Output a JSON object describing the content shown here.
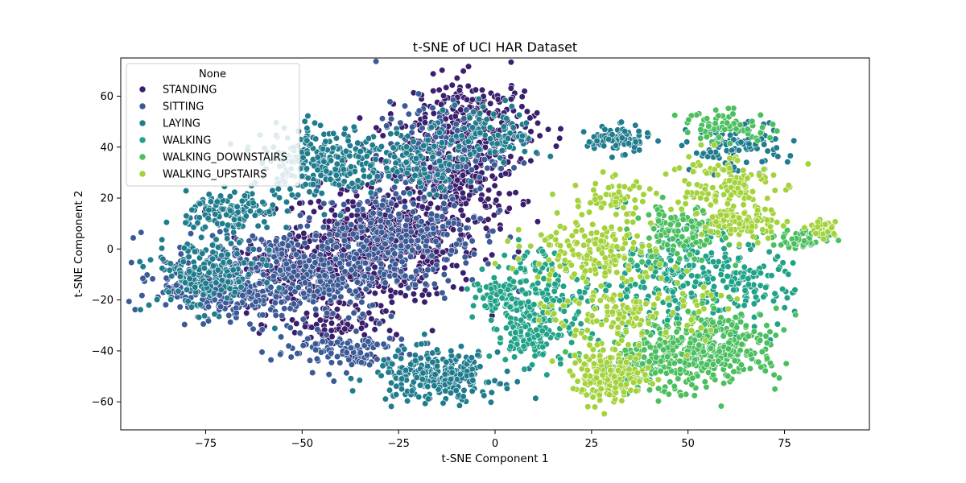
{
  "chart_data": {
    "type": "scatter",
    "title": "t-SNE of UCI HAR Dataset",
    "xlabel": "t-SNE Component 1",
    "ylabel": "t-SNE Component 2",
    "xlim": [
      -97,
      97
    ],
    "ylim": [
      -71,
      75
    ],
    "xticks": [
      -75,
      -50,
      -25,
      0,
      25,
      50,
      75
    ],
    "yticks": [
      -60,
      -40,
      -20,
      0,
      20,
      40,
      60
    ],
    "grid": false,
    "legend": {
      "title": "None",
      "position": "top-left"
    },
    "series": [
      {
        "name": "STANDING",
        "color": "#3b1f6e",
        "clusters": [
          {
            "cx": -30,
            "cy": 2,
            "sx": 13,
            "sy": 11,
            "n": 560
          },
          {
            "cx": -50,
            "cy": -10,
            "sx": 10,
            "sy": 8,
            "n": 180
          },
          {
            "cx": -12,
            "cy": 30,
            "sx": 9,
            "sy": 12,
            "n": 300
          },
          {
            "cx": -5,
            "cy": 50,
            "sx": 8,
            "sy": 9,
            "n": 200
          },
          {
            "cx": -40,
            "cy": -30,
            "sx": 8,
            "sy": 5,
            "n": 90
          }
        ]
      },
      {
        "name": "SITTING",
        "color": "#3b5a96",
        "clusters": [
          {
            "cx": -55,
            "cy": -10,
            "sx": 15,
            "sy": 9,
            "n": 430
          },
          {
            "cx": -25,
            "cy": 5,
            "sx": 11,
            "sy": 10,
            "n": 260
          },
          {
            "cx": -15,
            "cy": 38,
            "sx": 8,
            "sy": 10,
            "n": 150
          },
          {
            "cx": -40,
            "cy": -40,
            "sx": 9,
            "sy": 4,
            "n": 110
          },
          {
            "cx": -72,
            "cy": -16,
            "sx": 7,
            "sy": 6,
            "n": 160
          }
        ]
      },
      {
        "name": "LAYING",
        "color": "#207c8d",
        "clusters": [
          {
            "cx": -45,
            "cy": 35,
            "sx": 8,
            "sy": 7,
            "n": 260
          },
          {
            "cx": -68,
            "cy": 14,
            "sx": 6,
            "sy": 4,
            "n": 130
          },
          {
            "cx": -15,
            "cy": -50,
            "sx": 8,
            "sy": 5,
            "n": 260
          },
          {
            "cx": -75,
            "cy": -10,
            "sx": 7,
            "sy": 7,
            "n": 180
          },
          {
            "cx": 0,
            "cy": 45,
            "sx": 6,
            "sy": 6,
            "n": 100
          },
          {
            "cx": 32,
            "cy": 43,
            "sx": 4,
            "sy": 2.5,
            "n": 90
          },
          {
            "cx": 62,
            "cy": 40,
            "sx": 6,
            "sy": 5,
            "n": 110
          },
          {
            "cx": -20,
            "cy": 35,
            "sx": 6,
            "sy": 6,
            "n": 100
          }
        ]
      },
      {
        "name": "WALKING",
        "color": "#1fa287",
        "clusters": [
          {
            "cx": 12,
            "cy": -20,
            "sx": 7,
            "sy": 10,
            "n": 230
          },
          {
            "cx": 45,
            "cy": -12,
            "sx": 9,
            "sy": 10,
            "n": 230
          },
          {
            "cx": 65,
            "cy": -15,
            "sx": 6,
            "sy": 8,
            "n": 110
          },
          {
            "cx": 0,
            "cy": -18,
            "sx": 3,
            "sy": 3,
            "n": 40
          },
          {
            "cx": 8,
            "cy": -35,
            "sx": 4,
            "sy": 4,
            "n": 60
          }
        ]
      },
      {
        "name": "WALKING_DOWNSTAIRS",
        "color": "#4bbf5e",
        "clusters": [
          {
            "cx": 58,
            "cy": -38,
            "sx": 8,
            "sy": 7,
            "n": 280
          },
          {
            "cx": 42,
            "cy": -45,
            "sx": 8,
            "sy": 6,
            "n": 200
          },
          {
            "cx": 48,
            "cy": 6,
            "sx": 6,
            "sy": 6,
            "n": 140
          },
          {
            "cx": 60,
            "cy": 48,
            "sx": 6,
            "sy": 3,
            "n": 70
          },
          {
            "cx": 80,
            "cy": 4,
            "sx": 4,
            "sy": 2,
            "n": 50
          }
        ]
      },
      {
        "name": "WALKING_UPSTAIRS",
        "color": "#a4d23a",
        "clusters": [
          {
            "cx": 30,
            "cy": -50,
            "sx": 5,
            "sy": 5,
            "n": 180
          },
          {
            "cx": 25,
            "cy": 0,
            "sx": 8,
            "sy": 6,
            "n": 160
          },
          {
            "cx": 58,
            "cy": 25,
            "sx": 7,
            "sy": 7,
            "n": 130
          },
          {
            "cx": 65,
            "cy": 10,
            "sx": 5,
            "sy": 3,
            "n": 90
          },
          {
            "cx": 35,
            "cy": -25,
            "sx": 10,
            "sy": 6,
            "n": 140
          },
          {
            "cx": 85,
            "cy": 8,
            "sx": 2,
            "sy": 2,
            "n": 40
          },
          {
            "cx": 30,
            "cy": 20,
            "sx": 5,
            "sy": 4,
            "n": 60
          }
        ]
      }
    ]
  }
}
